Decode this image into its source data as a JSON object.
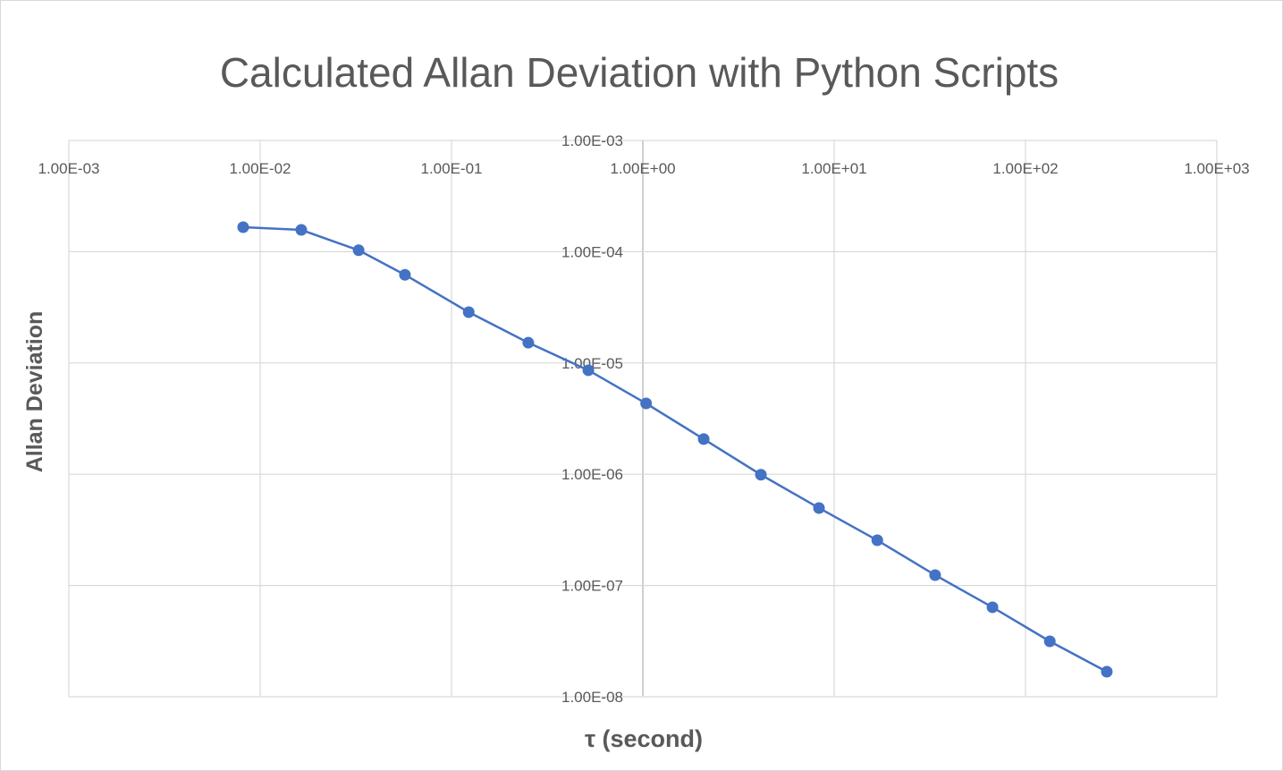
{
  "chart_data": {
    "type": "scatter",
    "title": "Calculated Allan Deviation with Python Scripts",
    "xlabel": "τ (second)",
    "ylabel": "Allan Deviation",
    "x_scale": "log",
    "y_scale": "log",
    "xlim": [
      0.001,
      1000
    ],
    "ylim": [
      1e-08,
      0.001
    ],
    "x_tick_labels": [
      "1.00E-03",
      "1.00E-02",
      "1.00E-01",
      "1.00E+00",
      "1.00E+01",
      "1.00E+02",
      "1.00E+03"
    ],
    "y_tick_labels": [
      "1.00E-03",
      "1.00E-04",
      "1.00E-05",
      "1.00E-06",
      "1.00E-07",
      "1.00E-08"
    ],
    "grid": true,
    "legend": "none",
    "series_color": "#4472C4",
    "series": [
      {
        "x": [
          0.00815,
          0.0164,
          0.0327,
          0.0571,
          0.123,
          0.252,
          0.519,
          1.04,
          2.08,
          4.14,
          8.33,
          16.8,
          33.7,
          67.2,
          134,
          266
        ],
        "y": [
          0.000166,
          0.000157,
          0.000103,
          6.2e-05,
          2.86e-05,
          1.52e-05,
          8.6e-06,
          4.33e-06,
          2.07e-06,
          9.9e-07,
          4.97e-07,
          2.55e-07,
          1.24e-07,
          6.37e-08,
          3.15e-08,
          1.68e-08
        ]
      }
    ]
  }
}
